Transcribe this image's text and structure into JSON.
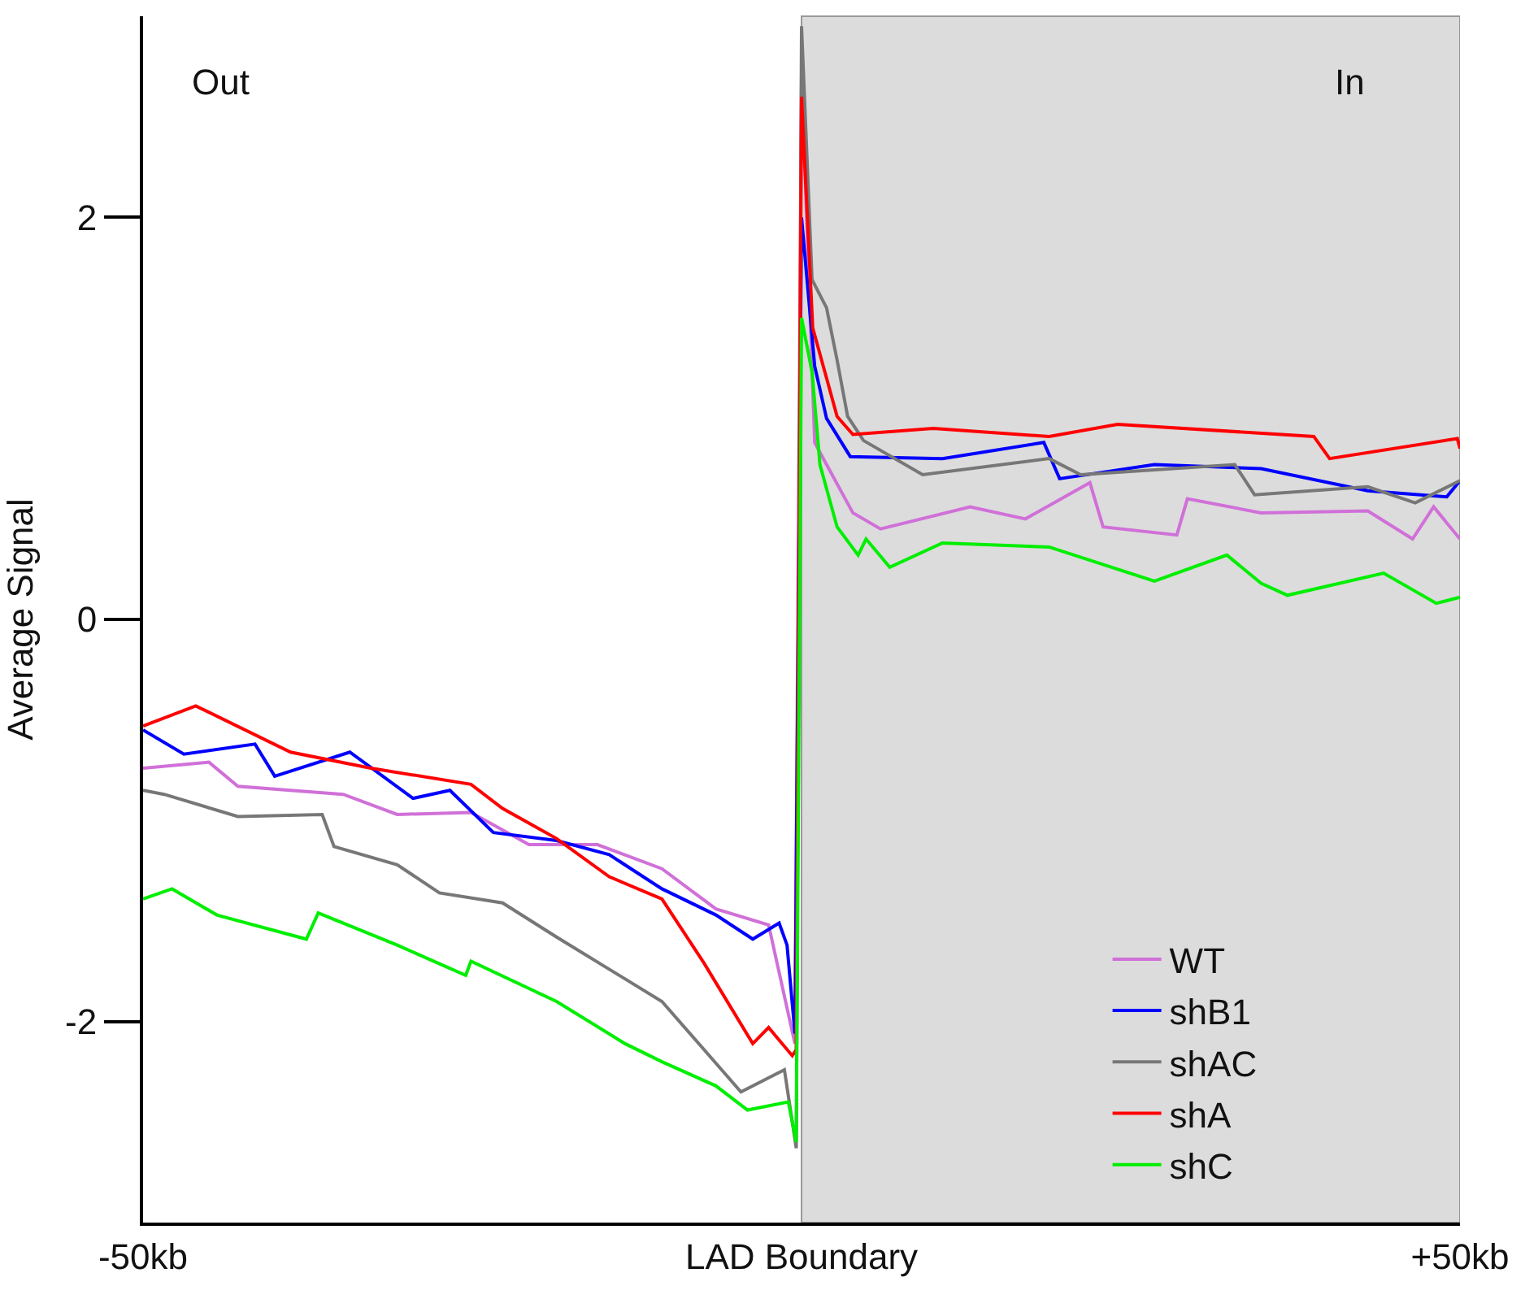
{
  "chart_data": {
    "type": "line",
    "ylabel": "Average Signal",
    "xlim": [
      -50,
      50
    ],
    "ylim": [
      -3,
      3
    ],
    "xticks": [
      {
        "value": -50,
        "label": "-50kb"
      },
      {
        "value": 0,
        "label": "LAD Boundary"
      },
      {
        "value": 50,
        "label": "+50kb"
      }
    ],
    "yticks": [
      -2,
      0,
      2
    ],
    "grid": false,
    "legend": "bottom right",
    "marker": "none",
    "line_style": "solid",
    "annotations": [
      "Out",
      "In"
    ],
    "bands": [
      {
        "axis": "x",
        "from": 0,
        "to": 50,
        "color": "#dcdcdc"
      }
    ],
    "series": [
      {
        "name": "WT",
        "color": "#d070d8",
        "x": [
          -50,
          -45,
          -42.8,
          -34.8,
          -30.7,
          -25.1,
          -20.7,
          -15.5,
          -10.6,
          -6.5,
          -2.5,
          -0.5,
          0,
          1.0,
          1.9,
          3.9,
          6,
          12.8,
          17,
          21.9,
          22.9,
          28.5,
          29.3,
          34.9,
          43,
          46.4,
          48,
          50
        ],
        "values": [
          -0.74,
          -0.71,
          -0.83,
          -0.87,
          -0.97,
          -0.96,
          -1.12,
          -1.12,
          -1.24,
          -1.44,
          -1.52,
          -2.11,
          2.71,
          0.88,
          0.77,
          0.53,
          0.45,
          0.56,
          0.5,
          0.68,
          0.46,
          0.42,
          0.6,
          0.53,
          0.54,
          0.4,
          0.56,
          0.4
        ]
      },
      {
        "name": "shB1",
        "color": "#0000ff",
        "x": [
          -50,
          -46.9,
          -41.5,
          -40,
          -34.3,
          -29.5,
          -26.7,
          -23.4,
          -18.6,
          -14.6,
          -10.6,
          -6.5,
          -3.7,
          -1.7,
          -1.1,
          -0.5,
          0,
          1.0,
          1.9,
          3.7,
          10.7,
          18.4,
          19.6,
          26.8,
          34.9,
          43,
          49,
          50
        ],
        "values": [
          -0.55,
          -0.67,
          -0.62,
          -0.78,
          -0.66,
          -0.89,
          -0.85,
          -1.06,
          -1.1,
          -1.17,
          -1.34,
          -1.47,
          -1.59,
          -1.51,
          -1.62,
          -2.06,
          2.0,
          1.26,
          1.0,
          0.81,
          0.8,
          0.88,
          0.7,
          0.77,
          0.75,
          0.64,
          0.61,
          0.69
        ]
      },
      {
        "name": "shAC",
        "color": "#777777",
        "x": [
          -50,
          -48.4,
          -42.8,
          -36.4,
          -35.5,
          -30.7,
          -27.5,
          -22.7,
          -18.6,
          -14.6,
          -10.6,
          -7.4,
          -4.6,
          -1.3,
          -0.4,
          0,
          0.8,
          1.9,
          2.7,
          3.5,
          4.7,
          9.2,
          18.8,
          21.2,
          32.9,
          34.4,
          43,
          46.6,
          50
        ],
        "values": [
          -0.85,
          -0.87,
          -0.98,
          -0.97,
          -1.13,
          -1.22,
          -1.36,
          -1.41,
          -1.58,
          -1.74,
          -1.9,
          -2.14,
          -2.35,
          -2.24,
          -2.63,
          2.95,
          1.69,
          1.55,
          1.29,
          1.01,
          0.89,
          0.72,
          0.8,
          0.72,
          0.77,
          0.62,
          0.66,
          0.58,
          0.69
        ]
      },
      {
        "name": "shA",
        "color": "#ff0000",
        "x": [
          -50,
          -46,
          -38.8,
          -32.7,
          -25.1,
          -22.7,
          -18.6,
          -14.6,
          -10.6,
          -7.4,
          -3.7,
          -2.5,
          -0.7,
          -0.4,
          0,
          0.85,
          2.7,
          3.9,
          10,
          18.8,
          24,
          38.9,
          40.1,
          49.8,
          50
        ],
        "values": [
          -0.53,
          -0.43,
          -0.66,
          -0.74,
          -0.82,
          -0.94,
          -1.09,
          -1.28,
          -1.39,
          -1.71,
          -2.11,
          -2.03,
          -2.17,
          -2.14,
          2.6,
          1.45,
          1.01,
          0.92,
          0.95,
          0.91,
          0.97,
          0.91,
          0.8,
          0.9,
          0.85
        ]
      },
      {
        "name": "shC",
        "color": "#00ee00",
        "x": [
          -50,
          -47.8,
          -44.4,
          -37.6,
          -36.7,
          -30.7,
          -25.5,
          -25.1,
          -18.6,
          -13.4,
          -10.6,
          -6.5,
          -4.1,
          -1.0,
          -0.4,
          0,
          0.8,
          1.4,
          2.7,
          4.3,
          4.9,
          6.7,
          10.7,
          18.8,
          26.8,
          32.3,
          34.9,
          36.9,
          44.2,
          48.2,
          50
        ],
        "values": [
          -1.39,
          -1.34,
          -1.47,
          -1.59,
          -1.46,
          -1.62,
          -1.77,
          -1.7,
          -1.9,
          -2.11,
          -2.2,
          -2.32,
          -2.44,
          -2.4,
          -2.6,
          1.5,
          1.23,
          0.77,
          0.46,
          0.32,
          0.4,
          0.26,
          0.38,
          0.36,
          0.19,
          0.32,
          0.18,
          0.12,
          0.23,
          0.08,
          0.11
        ]
      }
    ]
  }
}
